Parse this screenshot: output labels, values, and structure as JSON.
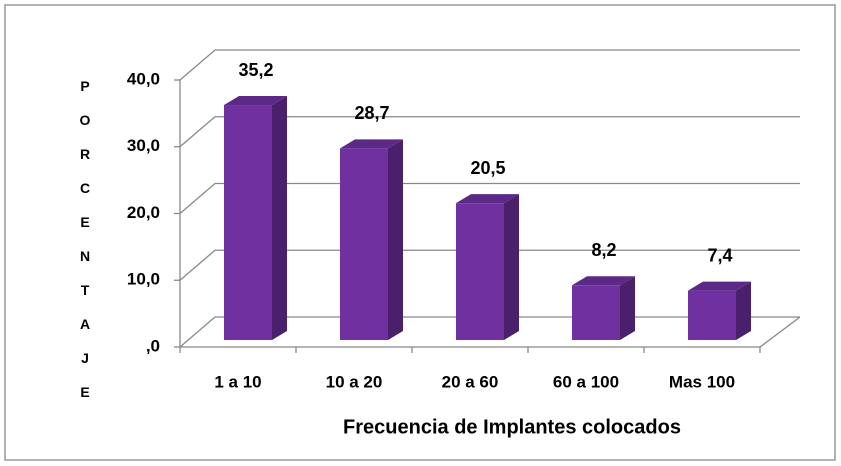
{
  "chart_data": {
    "type": "bar3d",
    "categories": [
      "1 a 10",
      "10 a 20",
      "20 a 60",
      "60 a 100",
      "Mas 100"
    ],
    "values": [
      35.2,
      28.7,
      20.5,
      8.2,
      7.4
    ],
    "value_labels": [
      "35,2",
      "28,7",
      "20,5",
      "8,2",
      "7,4"
    ],
    "color": "#7030a0",
    "ylim": [
      0,
      40
    ],
    "yticks": [
      {
        "value": 0,
        "label": ",0"
      },
      {
        "value": 10,
        "label": "10,0"
      },
      {
        "value": 20,
        "label": "20,0"
      },
      {
        "value": 30,
        "label": "30,0"
      },
      {
        "value": 40,
        "label": "40,0"
      }
    ],
    "grid": true,
    "y_label": "PORCENTAJE",
    "x_label": "Frecuencia de Implantes colocados"
  }
}
